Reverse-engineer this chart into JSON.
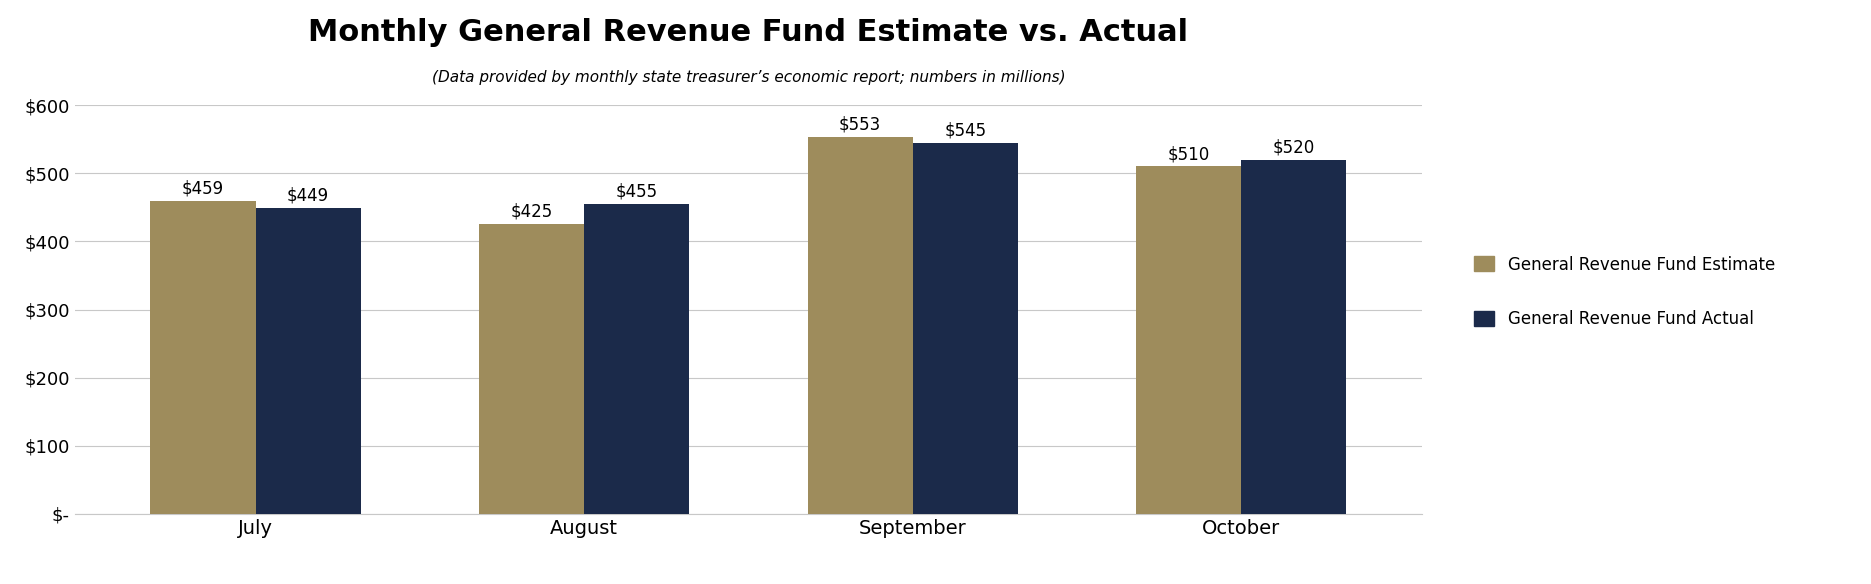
{
  "title": "Monthly General Revenue Fund Estimate vs. Actual",
  "subtitle": "(Data provided by monthly state treasurer’s economic report; numbers in millions)",
  "categories": [
    "July",
    "August",
    "September",
    "October"
  ],
  "estimate_values": [
    459,
    425,
    553,
    510
  ],
  "actual_values": [
    449,
    455,
    545,
    520
  ],
  "estimate_color": "#9e8c5c",
  "actual_color": "#1b2a4a",
  "ylim": [
    0,
    600
  ],
  "yticks": [
    0,
    100,
    200,
    300,
    400,
    500,
    600
  ],
  "ytick_labels": [
    "$-",
    "$100",
    "$200",
    "$300",
    "$400",
    "$500",
    "$600"
  ],
  "bar_width": 0.32,
  "legend_labels": [
    "General Revenue Fund Estimate",
    "General Revenue Fund Actual"
  ],
  "title_fontsize": 22,
  "subtitle_fontsize": 11,
  "tick_fontsize": 13,
  "legend_fontsize": 12,
  "annotation_fontsize": 12,
  "background_color": "#ffffff",
  "grid_color": "#c8c8c8"
}
